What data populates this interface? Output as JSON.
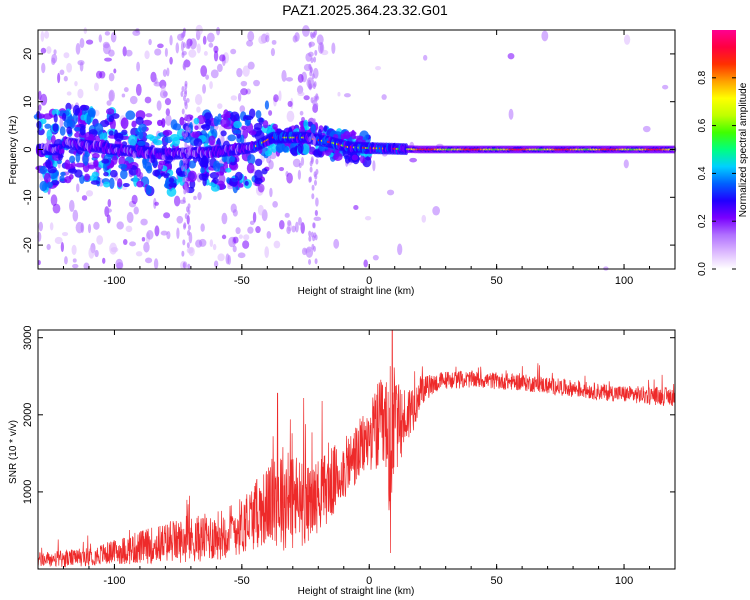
{
  "title": "PAZ1.2025.364.23.32.G01",
  "chart_data": [
    {
      "type": "heatmap",
      "name": "spectrogram",
      "xlabel": "Height of straight line (km)",
      "ylabel": "Frequency (Hz)",
      "xlim": [
        -130,
        120
      ],
      "ylim": [
        -25,
        25
      ],
      "xticks": [
        "-100",
        "-50",
        "0",
        "50",
        "100"
      ],
      "xtick_values": [
        -100,
        -50,
        0,
        50,
        100
      ],
      "yticks": [
        "20",
        "10",
        "0",
        "-10",
        "-20"
      ],
      "ytick_values": [
        20,
        10,
        0,
        -10,
        -20
      ],
      "colorbar": {
        "label": "Normalized spectral amplitude",
        "range": [
          0,
          1
        ],
        "ticks": [
          "0.0",
          "0.2",
          "0.4",
          "0.6",
          "0.8"
        ],
        "tick_values": [
          0.0,
          0.2,
          0.4,
          0.6,
          0.8
        ],
        "colors": [
          "#ffffff",
          "#dcb8ff",
          "#b070ff",
          "#7a00ff",
          "#2000ff",
          "#0060ff",
          "#00d0ff",
          "#00ff80",
          "#40ff00",
          "#c0ff00",
          "#ffff00",
          "#ffa000",
          "#ff3000",
          "#ff0040",
          "#ff0090"
        ]
      },
      "center_frequency_track": [
        {
          "x": -120,
          "f": 1.5
        },
        {
          "x": -100,
          "f": 0.0
        },
        {
          "x": -80,
          "f": -1.0
        },
        {
          "x": -60,
          "f": -0.5
        },
        {
          "x": -45,
          "f": 0.5
        },
        {
          "x": -38,
          "f": 2.5
        },
        {
          "x": -25,
          "f": 2.5
        },
        {
          "x": -15,
          "f": 1.5
        },
        {
          "x": -8,
          "f": 0.5
        },
        {
          "x": 0,
          "f": 0.3
        },
        {
          "x": 20,
          "f": 0.0
        },
        {
          "x": 60,
          "f": 0.0
        },
        {
          "x": 120,
          "f": 0.0
        }
      ]
    },
    {
      "type": "line",
      "name": "snr",
      "xlabel": "Height of straight line (km)",
      "ylabel": "SNR (10 * v/v)",
      "xlim": [
        -130,
        120
      ],
      "ylim": [
        0,
        3100
      ],
      "xticks": [
        "-100",
        "-50",
        "0",
        "50",
        "100"
      ],
      "xtick_values": [
        -100,
        -50,
        0,
        50,
        100
      ],
      "yticks": [
        "3000",
        "2000",
        "1000"
      ],
      "ytick_values": [
        3000,
        2000,
        1000
      ],
      "color": "#ee2a2a",
      "series": [
        {
          "name": "SNR",
          "x": [
            -130,
            -120,
            -110,
            -100,
            -90,
            -80,
            -70,
            -60,
            -50,
            -45,
            -40,
            -35,
            -30,
            -25,
            -20,
            -15,
            -10,
            -5,
            0,
            3,
            6,
            8,
            9,
            10,
            12,
            15,
            18,
            20,
            25,
            30,
            40,
            50,
            60,
            70,
            80,
            90,
            100,
            110,
            120
          ],
          "mean": [
            120,
            130,
            160,
            220,
            280,
            340,
            380,
            430,
            560,
            700,
            820,
            950,
            900,
            820,
            960,
            1100,
            1280,
            1480,
            1700,
            1820,
            1800,
            1000,
            1900,
            1900,
            1850,
            2000,
            2150,
            2300,
            2400,
            2450,
            2460,
            2440,
            2420,
            2380,
            2340,
            2300,
            2270,
            2250,
            2230
          ],
          "spread": [
            100,
            110,
            120,
            160,
            220,
            260,
            300,
            320,
            380,
            450,
            500,
            700,
            700,
            500,
            480,
            480,
            400,
            420,
            400,
            600,
            700,
            1500,
            900,
            700,
            500,
            400,
            300,
            200,
            130,
            120,
            110,
            110,
            110,
            110,
            110,
            110,
            110,
            120,
            120
          ],
          "peaks": [
            {
              "x": 9,
              "y": 3100
            },
            {
              "x": -36,
              "y": 2280
            },
            {
              "x": -25,
              "y": 1880
            },
            {
              "x": -16,
              "y": 1640
            },
            {
              "x": -31,
              "y": 1940
            }
          ]
        }
      ]
    }
  ]
}
